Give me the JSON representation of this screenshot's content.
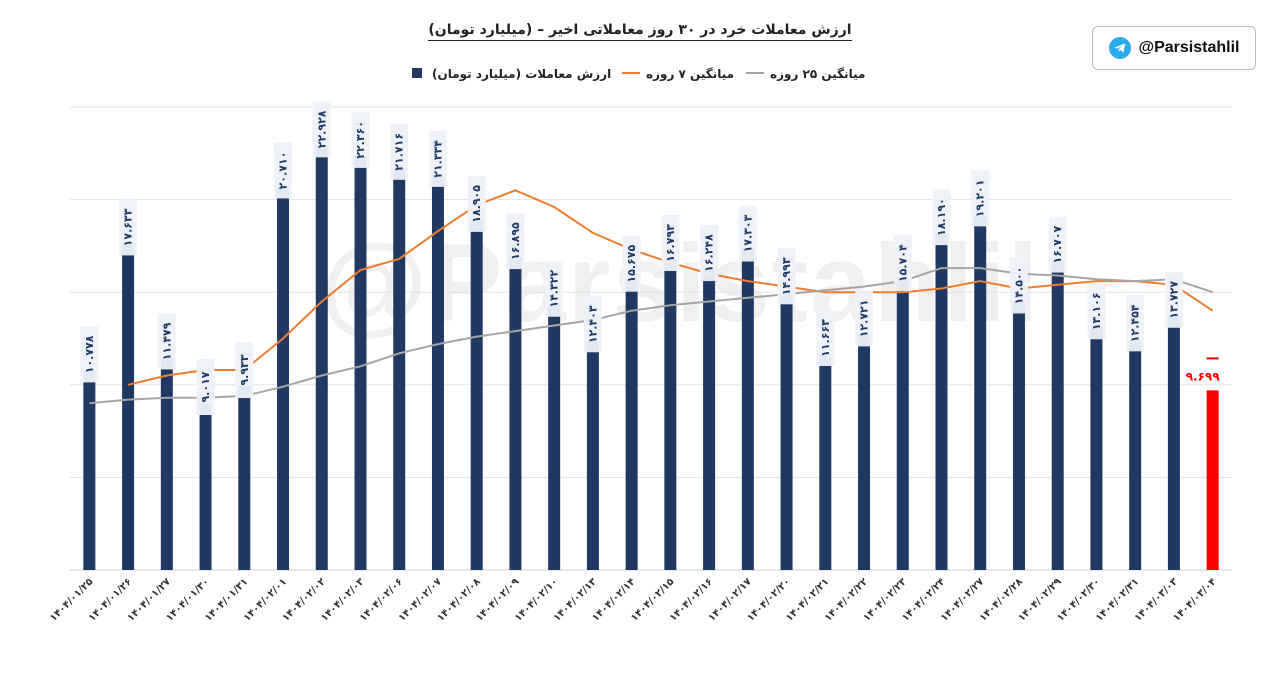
{
  "brand": {
    "handle": "@Parsistahlil",
    "icon": "telegram-icon",
    "watermark": "@Parsistahlil"
  },
  "chart_data": {
    "type": "bar",
    "title": "ارزش معاملات خرد در ۳۰ روز معاملاتی اخیر – (میلیارد تومان)",
    "legend_position": "top",
    "ylim": [
      0,
      25
    ],
    "grid": true,
    "categories": [
      "۱۴۰۴/۰۱/۲۵",
      "۱۴۰۴/۰۱/۲۶",
      "۱۴۰۴/۰۱/۲۷",
      "۱۴۰۴/۰۱/۳۰",
      "۱۴۰۴/۰۱/۳۱",
      "۱۴۰۴/۰۲/۰۱",
      "۱۴۰۴/۰۲/۰۲",
      "۱۴۰۴/۰۲/۰۳",
      "۱۴۰۴/۰۲/۰۶",
      "۱۴۰۴/۰۲/۰۷",
      "۱۴۰۴/۰۲/۰۸",
      "۱۴۰۴/۰۲/۰۹",
      "۱۴۰۴/۰۲/۱۰",
      "۱۴۰۴/۰۲/۱۳",
      "۱۴۰۴/۰۲/۱۴",
      "۱۴۰۴/۰۲/۱۵",
      "۱۴۰۴/۰۲/۱۶",
      "۱۴۰۴/۰۲/۱۷",
      "۱۴۰۴/۰۲/۲۰",
      "۱۴۰۴/۰۲/۲۱",
      "۱۴۰۴/۰۲/۲۲",
      "۱۴۰۴/۰۲/۲۳",
      "۱۴۰۴/۰۲/۲۴",
      "۱۴۰۴/۰۲/۲۷",
      "۱۴۰۴/۰۲/۲۸",
      "۱۴۰۴/۰۲/۲۹",
      "۱۴۰۴/۰۲/۳۰",
      "۱۴۰۴/۰۲/۳۱",
      "۱۴۰۴/۰۳/۰۳",
      "۱۴۰۴/۰۳/۰۴"
    ],
    "series": [
      {
        "name": "ارزش معاملات (میلیارد تومان)",
        "color": "#1f3864",
        "highlight_color": "#ff0000",
        "values": [
          10.778,
          17.633,
          11.479,
          9.017,
          9.933,
          20.71,
          22.928,
          22.36,
          21.716,
          21.334,
          18.905,
          16.895,
          14.322,
          12.403,
          15.675,
          16.793,
          16.248,
          17.303,
          14.993,
          11.663,
          12.721,
          15.704,
          18.19,
          19.201,
          14.5,
          16.707,
          13.106,
          12.454,
          13.727,
          9.699
        ],
        "labels": [
          "۱۰.۷۷۸",
          "۱۷.۶۳۳",
          "۱۱.۴۷۹",
          "۹.۰۱۷",
          "۹.۹۳۳",
          "۲۰.۷۱۰",
          "۲۲.۹۲۸",
          "۲۲.۳۶۰",
          "۲۱.۷۱۶",
          "۲۱.۳۳۴",
          "۱۸.۹۰۵",
          "۱۶.۸۹۵",
          "۱۴.۳۲۲",
          "۱۲.۴۰۳",
          "۱۵.۶۷۵",
          "۱۶.۷۹۳",
          "۱۶.۲۴۸",
          "۱۷.۳۰۳",
          "۱۴.۹۹۳",
          "۱۱.۶۶۳",
          "۱۲.۷۲۱",
          "۱۵.۷۰۴",
          "۱۸.۱۹۰",
          "۱۹.۲۰۱",
          "۱۴.۵۰۰",
          "۱۶.۷۰۷",
          "۱۳.۱۰۶",
          "۱۲.۴۵۴",
          "۱۳.۷۲۷",
          "۹.۶۹۹"
        ]
      },
      {
        "name": "میانگین ۷ روزه",
        "color": "#ed7d31",
        "values": [
          null,
          10.0,
          10.5,
          10.8,
          10.8,
          12.5,
          14.5,
          16.2,
          16.8,
          18.3,
          19.7,
          20.5,
          19.6,
          18.2,
          17.3,
          16.6,
          16.0,
          15.6,
          15.3,
          15.0,
          15.0,
          15.0,
          15.2,
          15.6,
          15.2,
          15.4,
          15.6,
          15.6,
          15.4,
          14.0
        ]
      },
      {
        "name": "میانگین ۲۵ روزه",
        "color": "#a5a5a5",
        "values": [
          9.0,
          9.2,
          9.3,
          9.3,
          9.4,
          9.9,
          10.5,
          11.0,
          11.7,
          12.2,
          12.6,
          12.9,
          13.2,
          13.5,
          14.0,
          14.3,
          14.5,
          14.7,
          14.9,
          15.1,
          15.3,
          15.6,
          16.3,
          16.3,
          16.0,
          15.9,
          15.7,
          15.6,
          15.7,
          15.0
        ]
      }
    ]
  }
}
